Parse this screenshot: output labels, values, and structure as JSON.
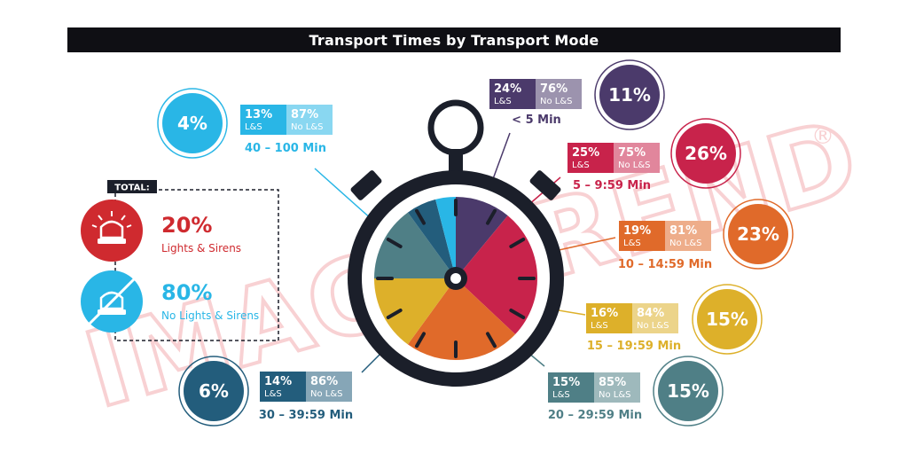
{
  "title": "Transport Times by Transport Mode",
  "total": {
    "label": "TOTAL:",
    "lights_pct": "20%",
    "lights_label": "Lights & Sirens",
    "no_lights_pct": "80%",
    "no_lights_label": "No Lights & Sirens"
  },
  "watermark": "IMAGETREND",
  "registered_mark": "®",
  "colors": {
    "lt5": "#4b3a6b",
    "m5_9": "#c8234b",
    "m10_14": "#e06a2a",
    "m15_19": "#ddb02a",
    "m20_29": "#4f7f86",
    "m30_39": "#235d7c",
    "m40_100": "#29b6e6",
    "red_total": "#cf2a2f",
    "blue_total": "#29b6e6",
    "dark": "#1b1f2a"
  },
  "chart_data": {
    "type": "pie",
    "title": "Transport Times by Transport Mode",
    "slices": [
      {
        "range": "< 5 Min",
        "share": "11%",
        "value": 11,
        "ls_pct": "24%",
        "nols_pct": "76%",
        "ls_label": "L&S",
        "nols_label": "No L&S",
        "color": "#4b3a6b"
      },
      {
        "range": "5 – 9:59 Min",
        "share": "26%",
        "value": 26,
        "ls_pct": "25%",
        "nols_pct": "75%",
        "ls_label": "L&S",
        "nols_label": "No L&S",
        "color": "#c8234b"
      },
      {
        "range": "10 – 14:59 Min",
        "share": "23%",
        "value": 23,
        "ls_pct": "19%",
        "nols_pct": "81%",
        "ls_label": "L&S",
        "nols_label": "No L&S",
        "color": "#e06a2a"
      },
      {
        "range": "15 – 19:59 Min",
        "share": "15%",
        "value": 15,
        "ls_pct": "16%",
        "nols_pct": "84%",
        "ls_label": "L&S",
        "nols_label": "No L&S",
        "color": "#ddb02a"
      },
      {
        "range": "20 – 29:59 Min",
        "share": "15%",
        "value": 15,
        "ls_pct": "15%",
        "nols_pct": "85%",
        "ls_label": "L&S",
        "nols_label": "No L&S",
        "color": "#4f7f86"
      },
      {
        "range": "30 – 39:59 Min",
        "share": "6%",
        "value": 6,
        "ls_pct": "14%",
        "nols_pct": "86%",
        "ls_label": "L&S",
        "nols_label": "No L&S",
        "color": "#235d7c"
      },
      {
        "range": "40 – 100 Min",
        "share": "4%",
        "value": 4,
        "ls_pct": "13%",
        "nols_pct": "87%",
        "ls_label": "L&S",
        "nols_label": "No L&S",
        "color": "#29b6e6"
      }
    ]
  }
}
